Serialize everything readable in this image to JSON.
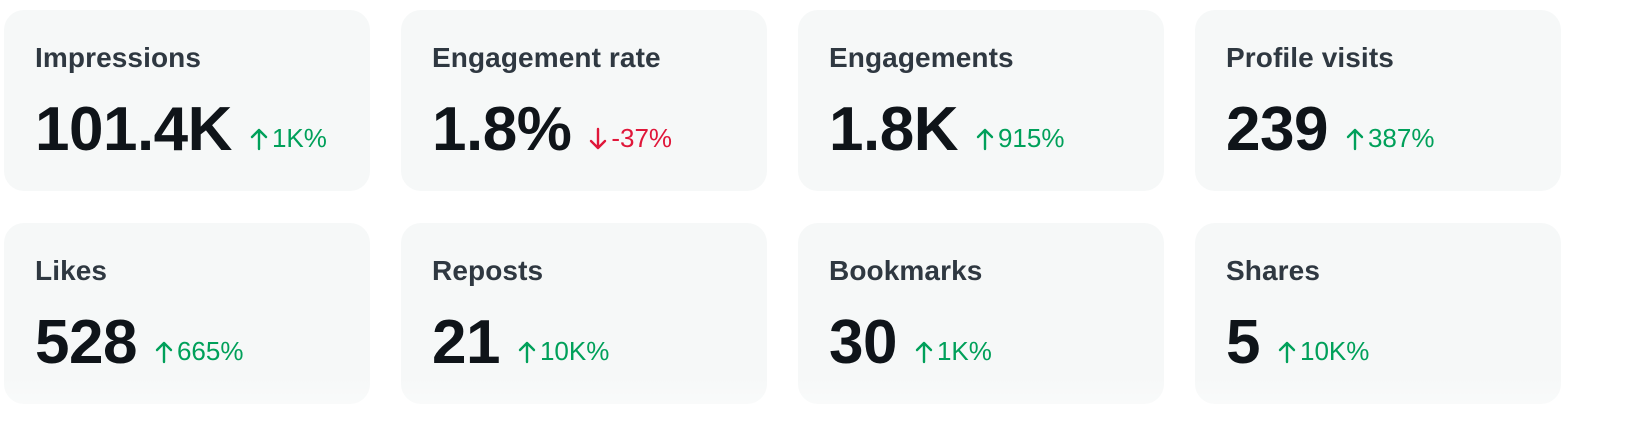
{
  "metrics": [
    {
      "label": "Impressions",
      "value": "101.4K",
      "change": "1K%",
      "direction": "up"
    },
    {
      "label": "Engagement rate",
      "value": "1.8%",
      "change": "-37%",
      "direction": "down"
    },
    {
      "label": "Engagements",
      "value": "1.8K",
      "change": "915%",
      "direction": "up"
    },
    {
      "label": "Profile visits",
      "value": "239",
      "change": "387%",
      "direction": "up"
    },
    {
      "label": "Likes",
      "value": "528",
      "change": "665%",
      "direction": "up"
    },
    {
      "label": "Reposts",
      "value": "21",
      "change": "10K%",
      "direction": "up"
    },
    {
      "label": "Bookmarks",
      "value": "30",
      "change": "1K%",
      "direction": "up"
    },
    {
      "label": "Shares",
      "value": "5",
      "change": "10K%",
      "direction": "up"
    }
  ],
  "colors": {
    "card_background": "#f6f8f8",
    "label": "#2f3841",
    "value": "#0f1419",
    "up": "#00a05a",
    "down": "#e0173a"
  },
  "icons": {
    "up": "arrow-up-icon",
    "down": "arrow-down-icon"
  }
}
